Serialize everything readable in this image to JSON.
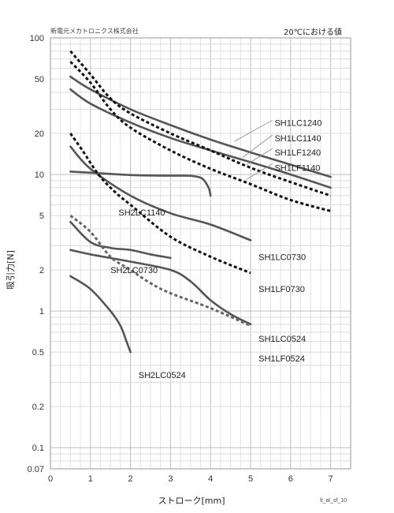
{
  "header": {
    "company": "新電元メカトロニクス株式会社",
    "condition": "20℃における値"
  },
  "footer_code": "lt_al_sf_10",
  "chart_data": {
    "type": "line",
    "title": "",
    "xlabel": "ストローク[mm]",
    "ylabel": "吸引力[N]",
    "xlim": [
      0,
      7.5
    ],
    "ylim": [
      0.07,
      100
    ],
    "y_scale": "log",
    "grid": true,
    "x_ticks": [
      "0",
      "1",
      "2",
      "3",
      "4",
      "5",
      "6",
      "7"
    ],
    "y_ticks": [
      {
        "v": 100,
        "t": "100"
      },
      {
        "v": 50,
        "t": "50"
      },
      {
        "v": 20,
        "t": "20"
      },
      {
        "v": 10,
        "t": "10"
      },
      {
        "v": 5,
        "t": "5"
      },
      {
        "v": 2,
        "t": "2"
      },
      {
        "v": 1,
        "t": "1"
      },
      {
        "v": 0.5,
        "t": "0.5"
      },
      {
        "v": 0.2,
        "t": "0.2"
      },
      {
        "v": 0.1,
        "t": "0.1"
      },
      {
        "v": 0.07,
        "t": "0.07"
      }
    ],
    "series": [
      {
        "name": "SH1LC1240",
        "style": "solid",
        "color": "#555555",
        "points": [
          [
            0.5,
            52
          ],
          [
            1,
            42
          ],
          [
            2,
            30
          ],
          [
            3,
            23
          ],
          [
            4,
            18
          ],
          [
            5,
            14.5
          ],
          [
            6,
            11.8
          ],
          [
            7,
            9.6
          ]
        ]
      },
      {
        "name": "SH1LC1140",
        "style": "solid",
        "color": "#555555",
        "points": [
          [
            0.5,
            42
          ],
          [
            1,
            33
          ],
          [
            2,
            24
          ],
          [
            3,
            18.5
          ],
          [
            4,
            15
          ],
          [
            5,
            12.3
          ],
          [
            6,
            10
          ],
          [
            7,
            8
          ]
        ]
      },
      {
        "name": "SH1LF1240",
        "style": "dashed",
        "color": "#111111",
        "points": [
          [
            0.5,
            80
          ],
          [
            1,
            54
          ],
          [
            1.5,
            36
          ],
          [
            2,
            28
          ],
          [
            3,
            20
          ],
          [
            4,
            15
          ],
          [
            5,
            11.2
          ],
          [
            6,
            8.8
          ],
          [
            7,
            7
          ]
        ]
      },
      {
        "name": "SH1LF1140",
        "style": "dashed",
        "color": "#111111",
        "points": [
          [
            0.5,
            67
          ],
          [
            1,
            47
          ],
          [
            1.5,
            30
          ],
          [
            2,
            22
          ],
          [
            3,
            15
          ],
          [
            4,
            11
          ],
          [
            5,
            8.5
          ],
          [
            6,
            6.5
          ],
          [
            7,
            5.4
          ]
        ]
      },
      {
        "name": "SH2LC1140",
        "style": "solid",
        "color": "#555555",
        "points": [
          [
            0.5,
            10.5
          ],
          [
            1,
            10.3
          ],
          [
            2,
            9.9
          ],
          [
            3,
            9.8
          ],
          [
            3.4,
            9.8
          ],
          [
            3.6,
            9.7
          ],
          [
            3.8,
            9.3
          ],
          [
            3.95,
            8
          ],
          [
            4,
            7
          ]
        ]
      },
      {
        "name": "SH1LC0730",
        "style": "solid",
        "color": "#555555",
        "points": [
          [
            0.5,
            16
          ],
          [
            1,
            11
          ],
          [
            2,
            7
          ],
          [
            3,
            5.2
          ],
          [
            4,
            4.3
          ],
          [
            5,
            3.3
          ]
        ]
      },
      {
        "name": "SH1LF0730",
        "style": "dashed",
        "color": "#111111",
        "points": [
          [
            0.5,
            20
          ],
          [
            0.8,
            15
          ],
          [
            1.2,
            10
          ],
          [
            1.6,
            7.5
          ],
          [
            2,
            6
          ],
          [
            3,
            3.5
          ],
          [
            4,
            2.5
          ],
          [
            5,
            1.9
          ]
        ]
      },
      {
        "name": "SH2LC0730",
        "style": "solid",
        "color": "#555555",
        "points": [
          [
            0.5,
            4.5
          ],
          [
            1,
            3.2
          ],
          [
            1.5,
            2.9
          ],
          [
            2,
            2.8
          ],
          [
            2.5,
            2.6
          ],
          [
            3,
            2.45
          ]
        ]
      },
      {
        "name": "SH1LC0524",
        "style": "solid",
        "color": "#555555",
        "points": [
          [
            0.5,
            2.8
          ],
          [
            1,
            2.6
          ],
          [
            2,
            2.3
          ],
          [
            3,
            2.0
          ],
          [
            3.5,
            1.65
          ],
          [
            4,
            1.2
          ],
          [
            4.5,
            0.95
          ],
          [
            5,
            0.8
          ]
        ]
      },
      {
        "name": "SH1LF0524",
        "style": "dashed",
        "color": "#666666",
        "points": [
          [
            0.5,
            5
          ],
          [
            1,
            3.8
          ],
          [
            1.5,
            2.5
          ],
          [
            2,
            2.0
          ],
          [
            2.5,
            1.6
          ],
          [
            3,
            1.35
          ],
          [
            4,
            1.05
          ],
          [
            5,
            0.78
          ]
        ]
      },
      {
        "name": "SH2LC0524",
        "style": "solid",
        "color": "#555555",
        "points": [
          [
            0.5,
            1.8
          ],
          [
            1,
            1.45
          ],
          [
            1.5,
            1.0
          ],
          [
            1.75,
            0.78
          ],
          [
            1.9,
            0.6
          ],
          [
            2,
            0.5
          ]
        ]
      }
    ],
    "labels": [
      {
        "text": "SH1LC1240",
        "x": 5.6,
        "y": 24
      },
      {
        "text": "SH1LC1140",
        "x": 5.6,
        "y": 18.5
      },
      {
        "text": "SH1LF1240",
        "x": 5.6,
        "y": 14.5
      },
      {
        "text": "SH1LF1140",
        "x": 5.6,
        "y": 11.2
      },
      {
        "text": "SH2LC1140",
        "x": 1.7,
        "y": 5.3
      },
      {
        "text": "SH1LC0730",
        "x": 5.2,
        "y": 2.5
      },
      {
        "text": "SH1LF0730",
        "x": 5.2,
        "y": 1.45
      },
      {
        "text": "SH2LC0730",
        "x": 1.5,
        "y": 2.0
      },
      {
        "text": "SH1LC0524",
        "x": 5.2,
        "y": 0.63
      },
      {
        "text": "SH1LF0524",
        "x": 5.2,
        "y": 0.45
      },
      {
        "text": "SH2LC0524",
        "x": 2.2,
        "y": 0.34
      }
    ],
    "leaders": [
      {
        "series": "SH1LC1240",
        "from": [
          4.6,
          17.5
        ],
        "to": [
          5.55,
          25
        ]
      },
      {
        "series": "SH1LC1140",
        "from": [
          4.8,
          13.3
        ],
        "to": [
          5.55,
          19.5
        ]
      },
      {
        "series": "SH1LF1240",
        "from": [
          4.9,
          11.8
        ],
        "to": [
          5.55,
          15.5
        ]
      },
      {
        "series": "SH1LF1140",
        "from": [
          4.9,
          9.2
        ],
        "to": [
          5.55,
          12
        ]
      }
    ]
  }
}
